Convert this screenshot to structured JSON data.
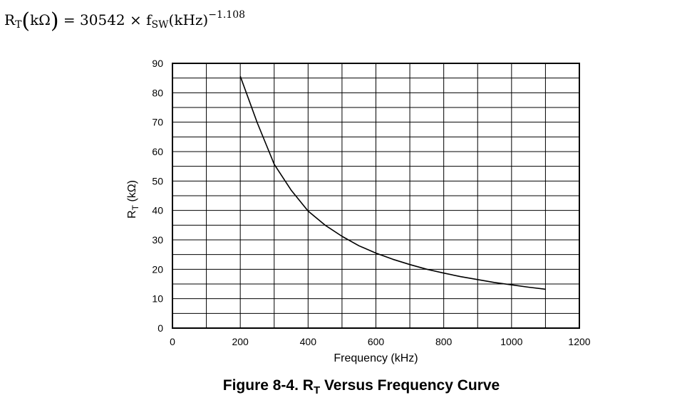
{
  "equation": {
    "lhs_symbol": "R",
    "lhs_sub": "T",
    "lhs_unit": "kΩ",
    "coefficient": "= 30542 × f",
    "var_sub": "SW",
    "var_unit": "(kHz)",
    "exponent": "−1.108"
  },
  "caption": {
    "prefix": "Figure 8-4. R",
    "sub": "T",
    "suffix": " Versus Frequency Curve"
  },
  "chart_data": {
    "type": "line",
    "title": "",
    "xlabel": "Frequency (kHz)",
    "ylabel": "RT (kΩ)",
    "ylabel_main": "R",
    "ylabel_sub": "T",
    "ylabel_unit": " (kΩ)",
    "xlim": [
      0,
      1200
    ],
    "ylim": [
      0,
      90
    ],
    "xticks": [
      0,
      200,
      400,
      600,
      800,
      1000,
      1200
    ],
    "yticks": [
      0,
      10,
      20,
      30,
      40,
      50,
      60,
      70,
      80,
      90
    ],
    "x_minor_step": 100,
    "y_minor_step": 5,
    "grid": true,
    "series": [
      {
        "name": "RT",
        "x": [
          200,
          250,
          300,
          350,
          400,
          450,
          500,
          550,
          600,
          650,
          700,
          750,
          800,
          850,
          900,
          950,
          1000,
          1050,
          1100
        ],
        "y": [
          85.6,
          69.8,
          55.7,
          46.9,
          39.8,
          35.0,
          31.2,
          28.0,
          25.5,
          23.4,
          21.6,
          20.0,
          18.7,
          17.5,
          16.5,
          15.5,
          14.7,
          13.9,
          13.2
        ]
      }
    ]
  }
}
